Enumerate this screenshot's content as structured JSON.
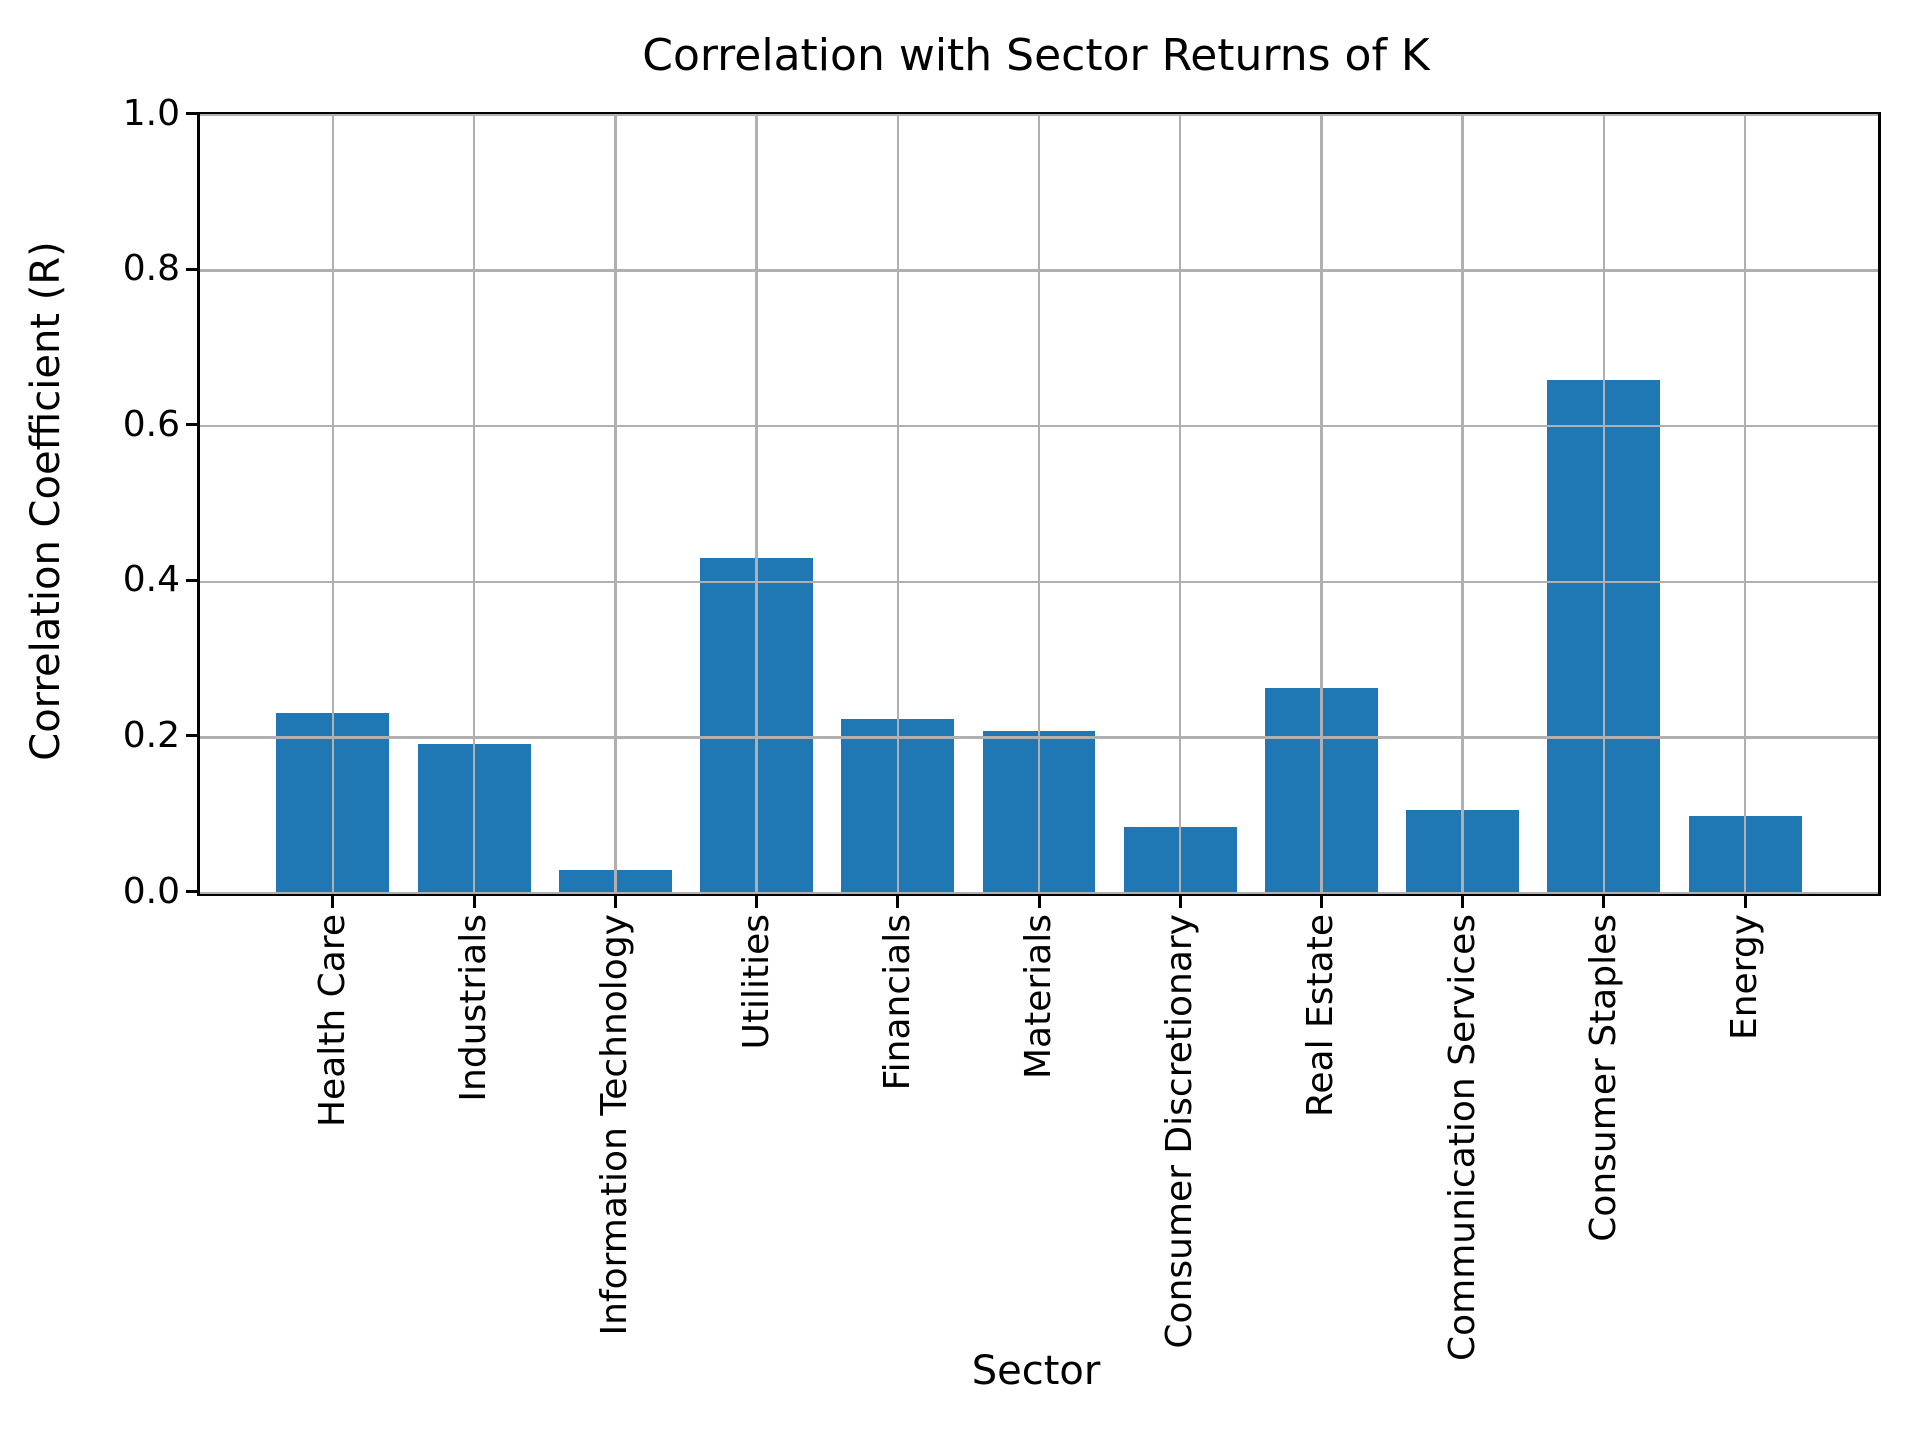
{
  "chart_data": {
    "type": "bar",
    "title": "Correlation with Sector Returns of K",
    "xlabel": "Sector",
    "ylabel": "Correlation Coefficient (R)",
    "categories": [
      "Health Care",
      "Industrials",
      "Information Technology",
      "Utilities",
      "Financials",
      "Materials",
      "Consumer Discretionary",
      "Real Estate",
      "Communication Services",
      "Consumer Staples",
      "Energy"
    ],
    "values": [
      0.232,
      0.191,
      0.03,
      0.43,
      0.224,
      0.208,
      0.085,
      0.264,
      0.107,
      0.66,
      0.099
    ],
    "ylim": [
      0.0,
      1.0
    ],
    "yticks": [
      0.0,
      0.2,
      0.4,
      0.6,
      0.8,
      1.0
    ],
    "ytick_labels": [
      "0.0",
      "0.2",
      "0.4",
      "0.6",
      "0.8",
      "1.0"
    ],
    "grid": true,
    "grid_on_top_of_bars": true,
    "legend": "none",
    "bar_color": "#1f77b4",
    "grid_color": "#b0b0b0",
    "text_color": "#000000",
    "background_color": "#ffffff"
  }
}
